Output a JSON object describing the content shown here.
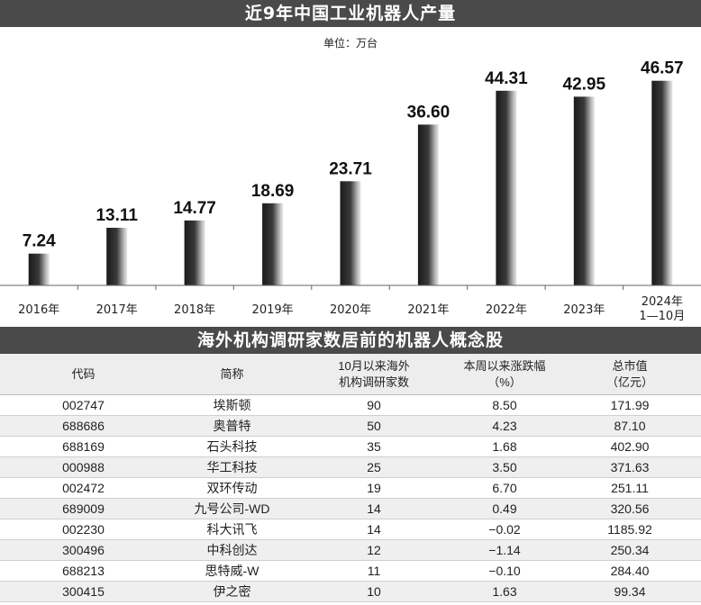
{
  "chart_title": "近9年中国工业机器人产量",
  "unit_label": "单位：万台",
  "chart_data": {
    "type": "bar",
    "title": "近9年中国工业机器人产量",
    "subtitle": "单位：万台",
    "categories": [
      "2016年",
      "2017年",
      "2018年",
      "2019年",
      "2020年",
      "2021年",
      "2022年",
      "2023年",
      "2024年\n1—10月"
    ],
    "values": [
      7.24,
      13.11,
      14.77,
      18.69,
      23.71,
      36.6,
      44.31,
      42.95,
      46.57
    ],
    "value_labels": [
      "7.24",
      "13.11",
      "14.77",
      "18.69",
      "23.71",
      "36.60",
      "44.31",
      "42.95",
      "46.57"
    ],
    "ylim": [
      0,
      50
    ],
    "grid": false
  },
  "table": {
    "title": "海外机构调研家数居前的机器人概念股",
    "headers": {
      "code": "代码",
      "name": "简称",
      "inst_line1": "10月以来海外",
      "inst_line2": "机构调研家数",
      "chg_line1": "本周以来涨跌幅",
      "chg_line2": "（%）",
      "cap_line1": "总市值",
      "cap_line2": "（亿元）"
    },
    "rows": [
      {
        "code": "002747",
        "name": "埃斯顿",
        "inst": "90",
        "chg": "8.50",
        "cap": "171.99"
      },
      {
        "code": "688686",
        "name": "奥普特",
        "inst": "50",
        "chg": "4.23",
        "cap": "87.10"
      },
      {
        "code": "688169",
        "name": "石头科技",
        "inst": "35",
        "chg": "1.68",
        "cap": "402.90"
      },
      {
        "code": "000988",
        "name": "华工科技",
        "inst": "25",
        "chg": "3.50",
        "cap": "371.63"
      },
      {
        "code": "002472",
        "name": "双环传动",
        "inst": "19",
        "chg": "6.70",
        "cap": "251.11"
      },
      {
        "code": "689009",
        "name": "九号公司-WD",
        "inst": "14",
        "chg": "0.49",
        "cap": "320.56"
      },
      {
        "code": "002230",
        "name": "科大讯飞",
        "inst": "14",
        "chg": "−0.02",
        "cap": "1185.92"
      },
      {
        "code": "300496",
        "name": "中科创达",
        "inst": "12",
        "chg": "−1.14",
        "cap": "250.34"
      },
      {
        "code": "688213",
        "name": "思特威-W",
        "inst": "11",
        "chg": "−0.10",
        "cap": "284.40"
      },
      {
        "code": "300415",
        "name": "伊之密",
        "inst": "10",
        "chg": "1.63",
        "cap": "99.34"
      }
    ]
  }
}
